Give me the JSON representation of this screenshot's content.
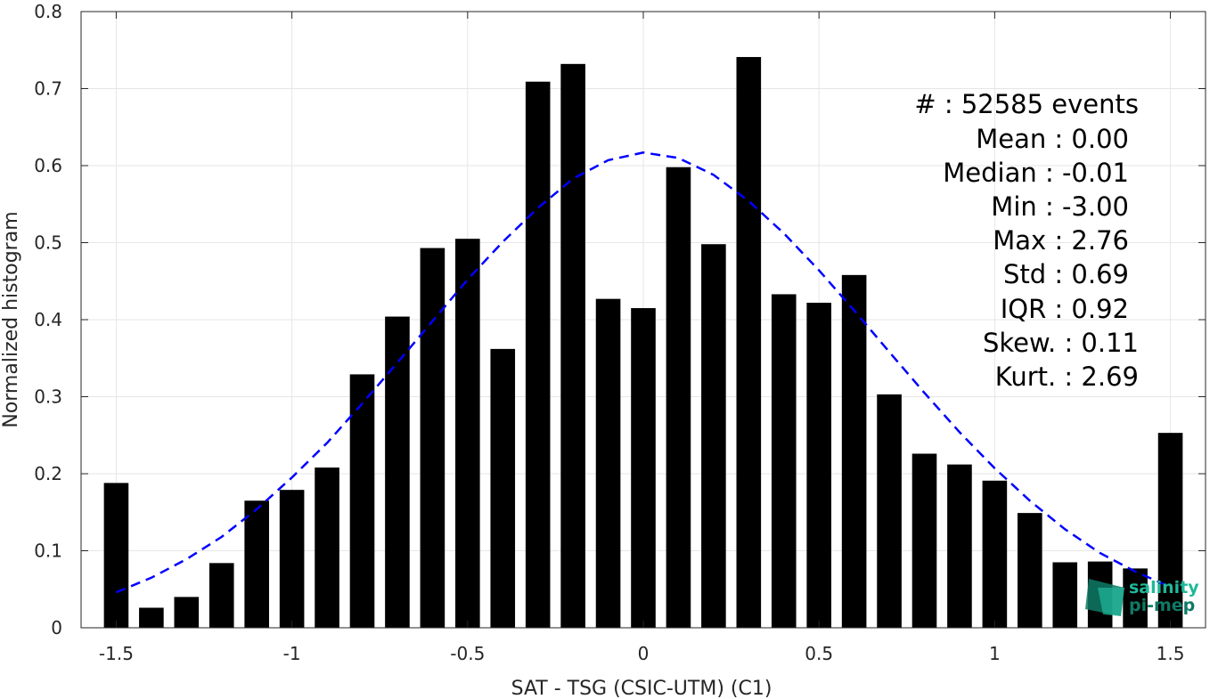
{
  "chart_data": {
    "type": "bar",
    "xlabel": "SAT - TSG (CSIC-UTM) (C1)",
    "ylabel": "Normalized histogram",
    "xlim": [
      -1.6,
      1.6
    ],
    "ylim": [
      0,
      0.8
    ],
    "xticks": [
      -1.5,
      -1,
      -0.5,
      0,
      0.5,
      1,
      1.5
    ],
    "xtick_labels": [
      "-1.5",
      "-1",
      "-0.5",
      "0",
      "0.5",
      "1",
      "1.5"
    ],
    "yticks": [
      0,
      0.1,
      0.2,
      0.3,
      0.4,
      0.5,
      0.6,
      0.7,
      0.8
    ],
    "ytick_labels": [
      "0",
      "0.1",
      "0.2",
      "0.3",
      "0.4",
      "0.5",
      "0.6",
      "0.7",
      "0.8"
    ],
    "grid": true,
    "bar_color": "#000000",
    "bar_width": 0.07,
    "bars": {
      "x": [
        -1.5,
        -1.4,
        -1.3,
        -1.2,
        -1.1,
        -1.0,
        -0.9,
        -0.8,
        -0.7,
        -0.6,
        -0.5,
        -0.4,
        -0.3,
        -0.2,
        -0.1,
        0.0,
        0.1,
        0.2,
        0.3,
        0.4,
        0.5,
        0.6,
        0.7,
        0.8,
        0.9,
        1.0,
        1.1,
        1.2,
        1.3,
        1.4,
        1.5
      ],
      "values": [
        0.188,
        0.026,
        0.04,
        0.084,
        0.165,
        0.179,
        0.208,
        0.329,
        0.404,
        0.493,
        0.505,
        0.362,
        0.709,
        0.732,
        0.427,
        0.415,
        0.598,
        0.498,
        0.741,
        0.433,
        0.422,
        0.458,
        0.303,
        0.226,
        0.212,
        0.191,
        0.149,
        0.085,
        0.086,
        0.077,
        0.253
      ]
    },
    "fit_curve": {
      "color": "#0000ff",
      "style": "dashed",
      "x": [
        -1.5,
        -1.4,
        -1.3,
        -1.2,
        -1.1,
        -1.0,
        -0.9,
        -0.8,
        -0.7,
        -0.6,
        -0.5,
        -0.4,
        -0.3,
        -0.2,
        -0.1,
        0.0,
        0.1,
        0.2,
        0.3,
        0.4,
        0.5,
        0.6,
        0.7,
        0.8,
        0.9,
        1.0,
        1.1,
        1.2,
        1.3,
        1.4,
        1.5
      ],
      "y": [
        0.046,
        0.065,
        0.089,
        0.118,
        0.154,
        0.195,
        0.24,
        0.291,
        0.344,
        0.398,
        0.452,
        0.501,
        0.545,
        0.583,
        0.607,
        0.617,
        0.61,
        0.588,
        0.554,
        0.512,
        0.464,
        0.412,
        0.358,
        0.305,
        0.254,
        0.207,
        0.165,
        0.128,
        0.097,
        0.073,
        0.053
      ]
    }
  },
  "stats": {
    "count_label": "#  : 52585 events",
    "mean": "Mean : 0.00",
    "median": "Median : -0.01",
    "min": "Min : -3.00",
    "max": "Max : 2.76",
    "std": "Std : 0.69",
    "iqr": "IQR : 0.92",
    "skew": "Skew. : 0.11",
    "kurt": "Kurt. : 2.69"
  },
  "logo": {
    "line1": "salinity",
    "line2": "pi-mep",
    "color_dark": "#0e7a66",
    "color_light": "#1fb89a"
  }
}
